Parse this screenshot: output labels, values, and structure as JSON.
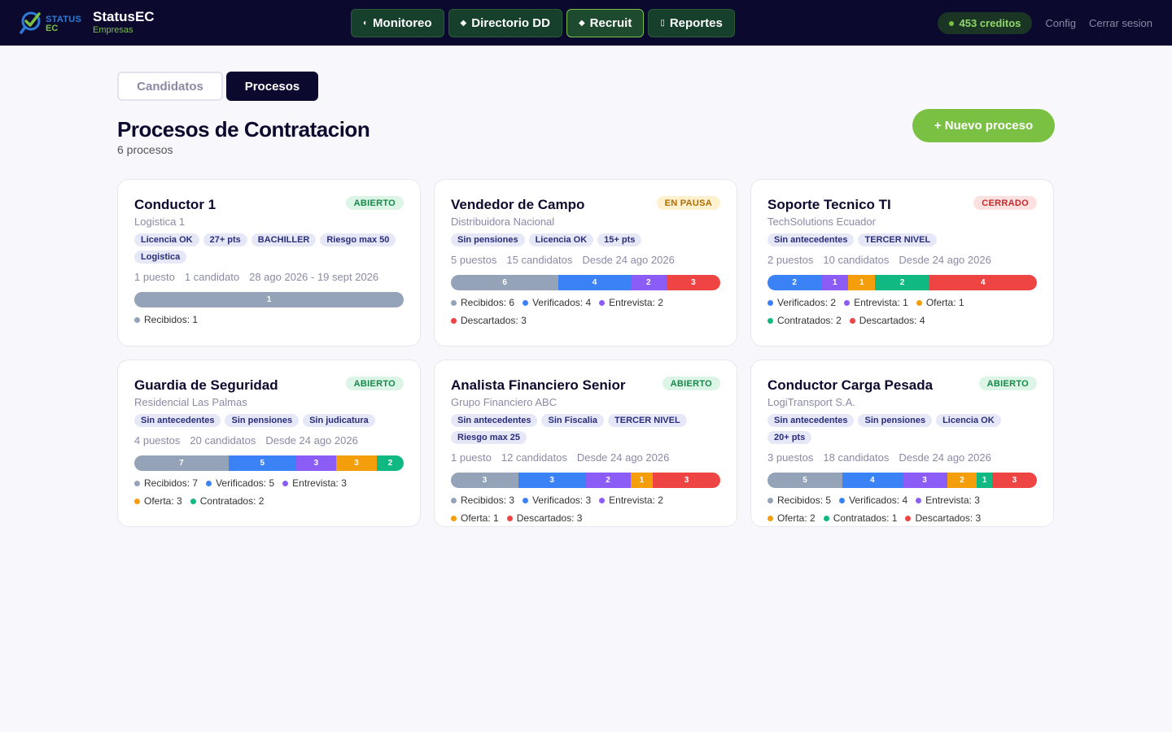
{
  "brand": {
    "logo_top": "STATUS",
    "logo_bottom": "EC",
    "name": "StatusEC",
    "sub": "Empresas"
  },
  "nav": [
    {
      "label": "Monitoreo",
      "icon": "◐"
    },
    {
      "label": "Directorio DD",
      "icon": "◆"
    },
    {
      "label": "Recruit",
      "icon": "◆"
    },
    {
      "label": "Reportes",
      "icon": "▯"
    }
  ],
  "credits": "453 creditos",
  "config_label": "Config",
  "logout_label": "Cerrar sesion",
  "tabs": {
    "candidatos": "Candidatos",
    "procesos": "Procesos"
  },
  "page": {
    "title": "Procesos de Contratacion",
    "subtitle": "6 procesos",
    "new_button": "+ Nuevo proceso"
  },
  "colors": {
    "recibidos": "#94a3b8",
    "verificados": "#3b82f6",
    "entrevista": "#8b5cf6",
    "oferta": "#f59e0b",
    "contratados": "#10b981",
    "descartados": "#ef4444"
  },
  "cards": [
    {
      "title": "Conductor 1",
      "company": "Logistica 1",
      "status": "ABIERTO",
      "status_type": "abierto",
      "tags": [
        "Licencia OK",
        "27+ pts",
        "BACHILLER",
        "Riesgo max 50",
        "Logistica"
      ],
      "meta": [
        "1 puesto",
        "1 candidato",
        "28 ago 2026 - 19 sept 2026"
      ],
      "stages": [
        {
          "key": "recibidos",
          "label": "Recibidos",
          "value": 1
        }
      ]
    },
    {
      "title": "Vendedor de Campo",
      "company": "Distribuidora Nacional",
      "status": "EN PAUSA",
      "status_type": "pausa",
      "tags": [
        "Sin pensiones",
        "Licencia OK",
        "15+ pts"
      ],
      "meta": [
        "5 puestos",
        "15 candidatos",
        "Desde 24 ago 2026"
      ],
      "stages": [
        {
          "key": "recibidos",
          "label": "Recibidos",
          "value": 6
        },
        {
          "key": "verificados",
          "label": "Verificados",
          "value": 4
        },
        {
          "key": "entrevista",
          "label": "Entrevista",
          "value": 2
        },
        {
          "key": "descartados",
          "label": "Descartados",
          "value": 3
        }
      ]
    },
    {
      "title": "Soporte Tecnico TI",
      "company": "TechSolutions Ecuador",
      "status": "CERRADO",
      "status_type": "cerrado",
      "tags": [
        "Sin antecedentes",
        "TERCER NIVEL"
      ],
      "meta": [
        "2 puestos",
        "10 candidatos",
        "Desde 24 ago 2026"
      ],
      "stages": [
        {
          "key": "verificados",
          "label": "Verificados",
          "value": 2
        },
        {
          "key": "entrevista",
          "label": "Entrevista",
          "value": 1
        },
        {
          "key": "oferta",
          "label": "Oferta",
          "value": 1
        },
        {
          "key": "contratados",
          "label": "Contratados",
          "value": 2
        },
        {
          "key": "descartados",
          "label": "Descartados",
          "value": 4
        }
      ]
    },
    {
      "title": "Guardia de Seguridad",
      "company": "Residencial Las Palmas",
      "status": "ABIERTO",
      "status_type": "abierto",
      "tags": [
        "Sin antecedentes",
        "Sin pensiones",
        "Sin judicatura"
      ],
      "meta": [
        "4 puestos",
        "20 candidatos",
        "Desde 24 ago 2026"
      ],
      "stages": [
        {
          "key": "recibidos",
          "label": "Recibidos",
          "value": 7
        },
        {
          "key": "verificados",
          "label": "Verificados",
          "value": 5
        },
        {
          "key": "entrevista",
          "label": "Entrevista",
          "value": 3
        },
        {
          "key": "oferta",
          "label": "Oferta",
          "value": 3
        },
        {
          "key": "contratados",
          "label": "Contratados",
          "value": 2
        }
      ]
    },
    {
      "title": "Analista Financiero Senior",
      "company": "Grupo Financiero ABC",
      "status": "ABIERTO",
      "status_type": "abierto",
      "tags": [
        "Sin antecedentes",
        "Sin Fiscalia",
        "TERCER NIVEL",
        "Riesgo max 25"
      ],
      "meta": [
        "1 puesto",
        "12 candidatos",
        "Desde 24 ago 2026"
      ],
      "stages": [
        {
          "key": "recibidos",
          "label": "Recibidos",
          "value": 3
        },
        {
          "key": "verificados",
          "label": "Verificados",
          "value": 3
        },
        {
          "key": "entrevista",
          "label": "Entrevista",
          "value": 2
        },
        {
          "key": "oferta",
          "label": "Oferta",
          "value": 1
        },
        {
          "key": "descartados",
          "label": "Descartados",
          "value": 3
        }
      ]
    },
    {
      "title": "Conductor Carga Pesada",
      "company": "LogiTransport S.A.",
      "status": "ABIERTO",
      "status_type": "abierto",
      "tags": [
        "Sin antecedentes",
        "Sin pensiones",
        "Licencia OK",
        "20+ pts"
      ],
      "meta": [
        "3 puestos",
        "18 candidatos",
        "Desde 24 ago 2026"
      ],
      "stages": [
        {
          "key": "recibidos",
          "label": "Recibidos",
          "value": 5
        },
        {
          "key": "verificados",
          "label": "Verificados",
          "value": 4
        },
        {
          "key": "entrevista",
          "label": "Entrevista",
          "value": 3
        },
        {
          "key": "oferta",
          "label": "Oferta",
          "value": 2
        },
        {
          "key": "contratados",
          "label": "Contratados",
          "value": 1
        },
        {
          "key": "descartados",
          "label": "Descartados",
          "value": 3
        }
      ]
    }
  ]
}
